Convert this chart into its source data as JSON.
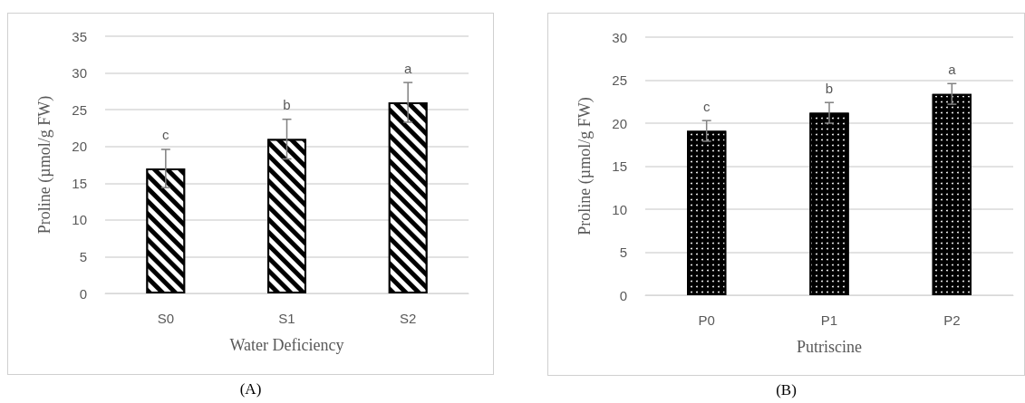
{
  "chart_data": [
    {
      "type": "bar",
      "xlabel": "Water Deficiency",
      "ylabel": "Proline (µmol/g FW)",
      "categories": [
        "S0",
        "S1",
        "S2"
      ],
      "values": [
        17,
        21,
        26
      ],
      "errors": [
        2.6,
        2.7,
        2.7
      ],
      "color": "#000000",
      "ylim": [
        0,
        35
      ],
      "yticks": [
        0,
        5,
        10,
        15,
        20,
        25,
        30,
        35
      ],
      "grid": "y",
      "annotations": [
        "c",
        "b",
        "a",
        "(A)"
      ]
    },
    {
      "type": "bar",
      "xlabel": "Putriscine",
      "ylabel": "Proline (µmol/g FW)",
      "categories": [
        "P0",
        "P1",
        "P2"
      ],
      "values": [
        19.1,
        21.2,
        23.4
      ],
      "errors": [
        1.2,
        1.2,
        1.2
      ],
      "color": "#000000",
      "ylim": [
        0,
        30
      ],
      "yticks": [
        0,
        5,
        10,
        15,
        20,
        25,
        30
      ],
      "grid": "y",
      "annotations": [
        "c",
        "b",
        "a",
        "(B)"
      ]
    }
  ]
}
